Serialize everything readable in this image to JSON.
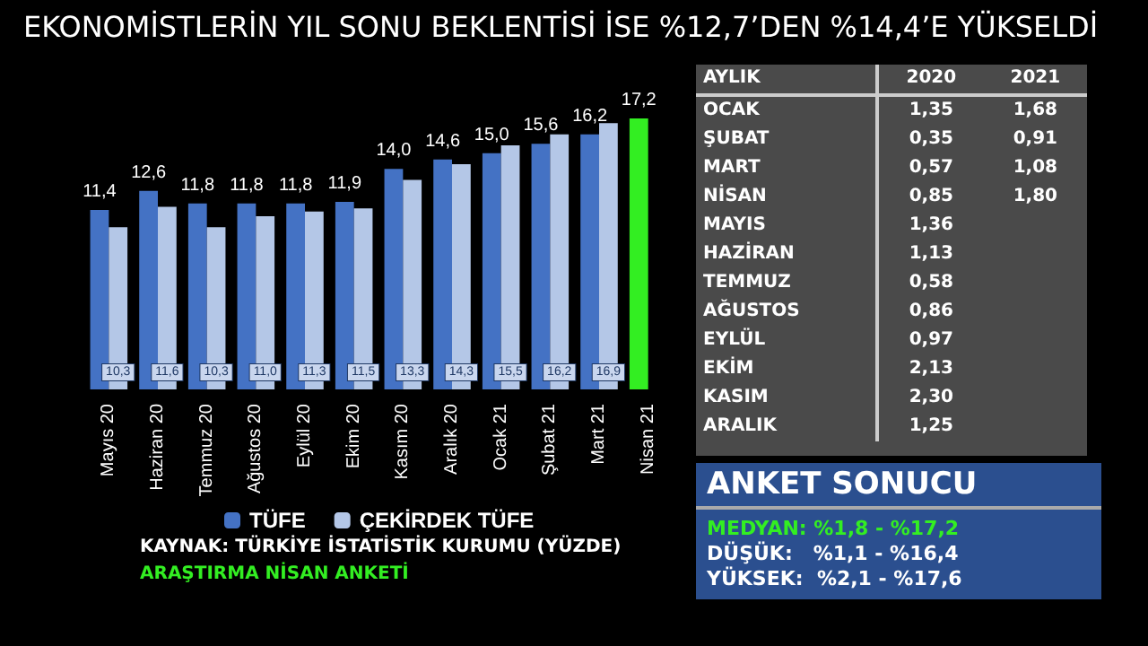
{
  "chart_data": [
    {
      "type": "bar",
      "title": "EKONOMİSTLERİN YIL SONU BEKLENTİSİ İSE %12,7’DEN %14,4’E YÜKSELDİ",
      "categories": [
        "Mayıs 20",
        "Haziran 20",
        "Temmuz 20",
        "Ağustos 20",
        "Eylül 20",
        "Ekim 20",
        "Kasım 20",
        "Aralık 20",
        "Ocak 21",
        "Şubat 21",
        "Mart 21",
        "Nisan 21"
      ],
      "series": [
        {
          "name": "TÜFE",
          "color": "#4472c4",
          "colors": [
            "#4472c4",
            "#4472c4",
            "#4472c4",
            "#4472c4",
            "#4472c4",
            "#4472c4",
            "#4472c4",
            "#4472c4",
            "#4472c4",
            "#4472c4",
            "#4472c4",
            "#33ee22"
          ],
          "values": [
            11.4,
            12.6,
            11.8,
            11.8,
            11.8,
            11.9,
            14.0,
            14.6,
            15.0,
            15.6,
            16.2,
            17.2
          ],
          "value_labels": [
            "11,4",
            "12,6",
            "11,8",
            "11,8",
            "11,8",
            "11,9",
            "14,0",
            "14,6",
            "15,0",
            "15,6",
            "16,2",
            "17,2"
          ]
        },
        {
          "name": "ÇEKİRDEK TÜFE",
          "color": "#b4c7e7",
          "values": [
            10.3,
            11.6,
            10.3,
            11.0,
            11.3,
            11.5,
            13.3,
            14.3,
            15.5,
            16.2,
            16.9,
            null
          ],
          "value_labels": [
            "10,3",
            "11,6",
            "10,3",
            "11,0",
            "11,3",
            "11,5",
            "13,3",
            "14,3",
            "15,5",
            "16,2",
            "16,9",
            null
          ]
        }
      ],
      "tick_labels": "x",
      "legend": "bottom",
      "annotations": [
        "KAYNAK: TÜRKİYE İSTATİSTİK KURUMU (YÜZDE)",
        "ARAŞTIRMA NİSAN ANKETİ"
      ]
    },
    {
      "type": "other",
      "categories": [
        "AYLIK",
        "2020",
        "2021"
      ],
      "y_categories": [
        "OCAK",
        "ŞUBAT",
        "MART",
        "NİSAN",
        "MAYIS",
        "HAZİRAN",
        "TEMMUZ",
        "AĞUSTOS",
        "EYLÜL",
        "EKİM",
        "KASIM",
        "ARALIK"
      ],
      "cell_labels": [
        [
          "1,35",
          "1,68"
        ],
        [
          "0,35",
          "0,91"
        ],
        [
          "0,57",
          "1,08"
        ],
        [
          "0,85",
          "1,80"
        ],
        [
          "1,36",
          null
        ],
        [
          "1,13",
          null
        ],
        [
          "0,58",
          null
        ],
        [
          "0,86",
          null
        ],
        [
          "0,97",
          null
        ],
        [
          "2,13",
          null
        ],
        [
          "2,30",
          null
        ],
        [
          "1,25",
          null
        ]
      ]
    },
    {
      "type": "other",
      "title": "ANKET SONUCU",
      "annotations": [
        "MEDYAN: %1,8 - %17,2",
        "DÜŞÜK:   %1,1 - %16,4",
        "YÜKSEK:  %2,1 - %17,6"
      ]
    }
  ]
}
